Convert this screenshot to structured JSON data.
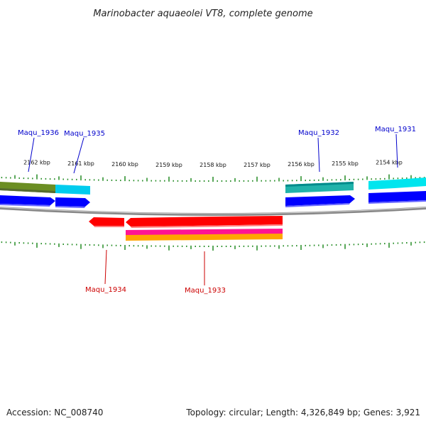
{
  "title": "Marinobacter aquaeolei VT8, complete genome",
  "accession_text": "Accession: NC_008740",
  "summary_text": "Topology: circular; Length: 4,326,849 bp; Genes: 3,921",
  "colors": {
    "backbone": "#888888",
    "tick": "#228b22",
    "forward_label": "#0000cc",
    "reverse_label": "#cc0000",
    "gene_blue": "#0000ff",
    "gene_red": "#ff0000",
    "olive": "#6b8e23",
    "cyan": "#00ccdd",
    "teal": "#20b2aa",
    "magenta": "#ff1493",
    "orange": "#ffa500"
  },
  "tick_labels": [
    "2162 kbp",
    "2161 kbp",
    "2160 kbp",
    "2159 kbp",
    "2158 kbp",
    "2157 kbp",
    "2156 kbp",
    "2155 kbp",
    "2154 kbp"
  ],
  "forward_genes": [
    {
      "name": "Maqu_1936"
    },
    {
      "name": "Maqu_1935"
    },
    {
      "name": "Maqu_1932"
    },
    {
      "name": "Maqu_1931"
    }
  ],
  "reverse_genes": [
    {
      "name": "Maqu_1934"
    },
    {
      "name": "Maqu_1933"
    }
  ]
}
